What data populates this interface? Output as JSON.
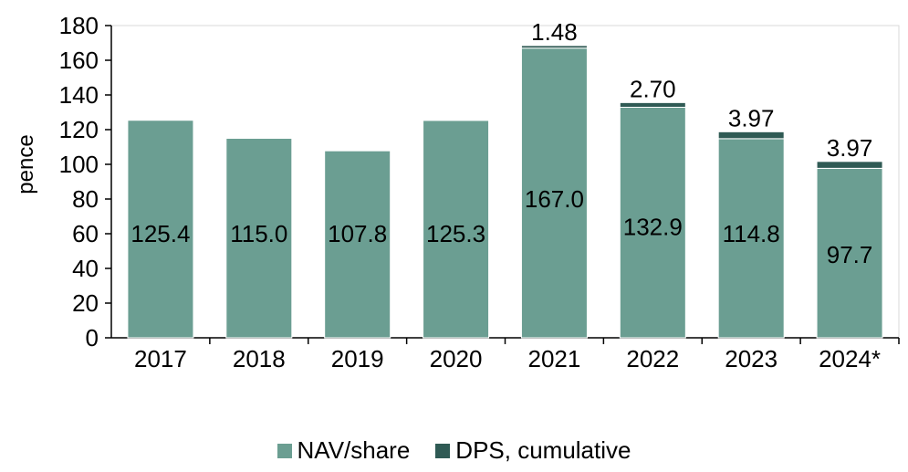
{
  "chart_data": {
    "type": "bar",
    "stacked": true,
    "categories": [
      "2017",
      "2018",
      "2019",
      "2020",
      "2021",
      "2022",
      "2023",
      "2024*"
    ],
    "series": [
      {
        "name": "NAV/share",
        "color": "#6b9e92",
        "values": [
          125.4,
          115.0,
          107.8,
          125.3,
          167.0,
          132.9,
          114.8,
          97.7
        ],
        "labels": [
          "125.4",
          "115.0",
          "107.8",
          "125.3",
          "167.0",
          "132.9",
          "114.8",
          "97.7"
        ]
      },
      {
        "name": "DPS, cumulative",
        "color": "#2f5a54",
        "values": [
          0,
          0,
          0,
          0,
          1.48,
          2.7,
          3.97,
          3.97
        ],
        "labels": [
          "",
          "",
          "",
          "",
          "1.48",
          "2.70",
          "3.97",
          "3.97"
        ]
      }
    ],
    "ylabel": "pence",
    "xlabel": "",
    "ylim": [
      0,
      180
    ],
    "yticks": [
      0,
      20,
      40,
      60,
      80,
      100,
      120,
      140,
      160,
      180
    ],
    "grid": false,
    "legend_position": "bottom"
  }
}
